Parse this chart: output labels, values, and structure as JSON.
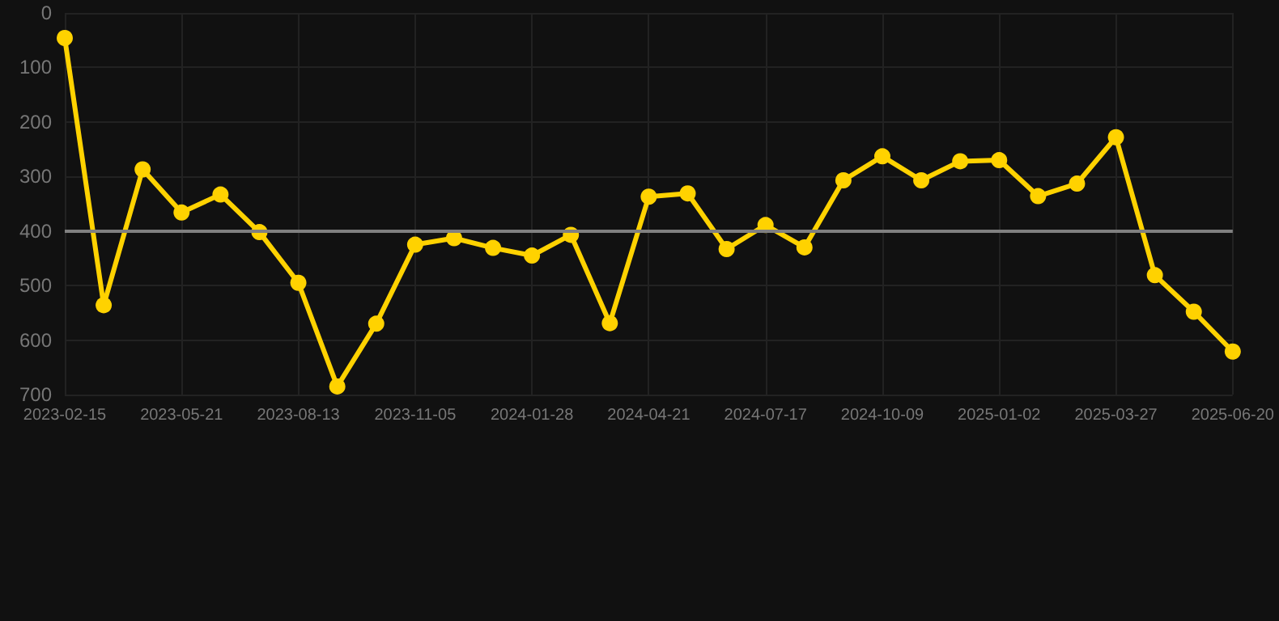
{
  "chart_data": {
    "type": "line",
    "categories": [
      "2023-02-15",
      null,
      null,
      "2023-05-21",
      null,
      null,
      "2023-08-13",
      null,
      null,
      "2023-11-05",
      null,
      null,
      "2024-01-28",
      null,
      null,
      "2024-04-21",
      null,
      null,
      "2024-07-17",
      null,
      null,
      "2024-10-09",
      null,
      null,
      "2025-01-02",
      null,
      null,
      "2025-03-27",
      null,
      null,
      "2025-06-20"
    ],
    "series": [
      {
        "color": "#ffd200",
        "values": [
          46,
          536,
          287,
          366,
          333,
          402,
          495,
          685,
          570,
          425,
          413,
          431,
          445,
          407,
          569,
          337,
          331,
          433,
          389,
          430,
          307,
          263,
          307,
          272,
          270,
          336,
          313,
          228,
          481,
          548,
          621
        ]
      }
    ],
    "ylim": [
      700,
      0
    ],
    "yticks": [
      0,
      100,
      200,
      300,
      400,
      500,
      600,
      700
    ],
    "ref_lines": [
      {
        "axis": "y",
        "value": 400,
        "color": "#808080"
      }
    ],
    "grid": true,
    "marker": "circle",
    "line_style": "solid"
  }
}
